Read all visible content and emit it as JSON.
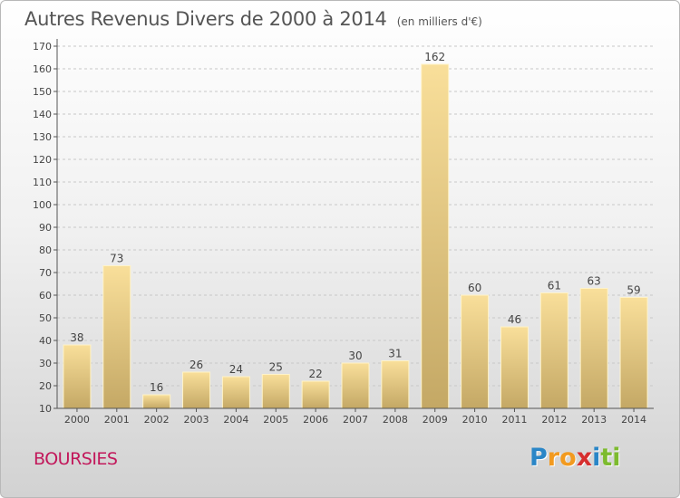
{
  "chart_data": {
    "type": "bar",
    "title": "Autres Revenus Divers de 2000 à 2014",
    "unit": "(en milliers d'€)",
    "categories": [
      "2000",
      "2001",
      "2002",
      "2003",
      "2004",
      "2005",
      "2006",
      "2007",
      "2008",
      "2009",
      "2010",
      "2011",
      "2012",
      "2013",
      "2014"
    ],
    "values": [
      38,
      73,
      16,
      26,
      24,
      25,
      22,
      30,
      31,
      162,
      60,
      46,
      61,
      63,
      59
    ],
    "yticks": [
      "10",
      "20",
      "30",
      "40",
      "50",
      "60",
      "70",
      "80",
      "90",
      "100",
      "110",
      "120",
      "130",
      "140",
      "150",
      "160",
      "170"
    ],
    "ylim": [
      10,
      170
    ],
    "grid": true,
    "bar_color": "#e8cc84"
  },
  "location": {
    "name": "BOURSIES"
  },
  "logo": {
    "letters": [
      "P",
      "r",
      "o",
      "x",
      "i",
      "t",
      "i"
    ],
    "colors": [
      "#2a86c7",
      "#f29a1f",
      "#f29a1f",
      "#d62e2e",
      "#2a86c7",
      "#7dbb2e",
      "#7dbb2e"
    ]
  }
}
